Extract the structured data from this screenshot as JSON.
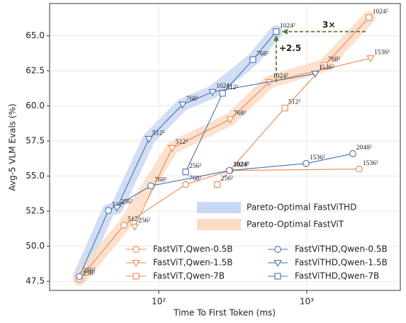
{
  "chart_data": {
    "type": "line",
    "xlabel": "Time To First Token (ms)",
    "ylabel": "Avg-5 VLM Evals (%)",
    "xscale": "log",
    "xlim": [
      18.3,
      4290
    ],
    "ylim": [
      46.85,
      67.3
    ],
    "xticks": [
      {
        "value": 100,
        "label": "10²"
      },
      {
        "value": 1000,
        "label": "10³"
      }
    ],
    "yticks": [
      47.5,
      {
        "value": 50,
        "label": "50.0"
      },
      52.5,
      {
        "value": 55,
        "label": "55.0"
      },
      57.5,
      {
        "value": 60,
        "label": "60.0"
      },
      62.5,
      {
        "value": 65,
        "label": "65.0"
      }
    ],
    "grid": true,
    "series": [
      {
        "name": "FastViT,Qwen-0.5B",
        "family": "FastViT",
        "marker": "circle",
        "color": "#e8884a",
        "label_color": "#b5452a",
        "x": [
          29.1,
          58.3,
          152,
          304,
          2260
        ],
        "values": [
          47.65,
          51.5,
          54.4,
          55.4,
          55.5
        ],
        "point_labels": [
          "256²",
          "512²",
          "768²",
          "1024²",
          "1536²"
        ]
      },
      {
        "name": "FastViT,Qwen-1.5B",
        "family": "FastViT",
        "marker": "triangle",
        "color": "#e8884a",
        "label_color": "#b5452a",
        "x": [
          68.7,
          123,
          304,
          557,
          2700
        ],
        "values": [
          51.4,
          57.0,
          59.05,
          61.7,
          63.4
        ],
        "point_labels": [
          "256²",
          "512²",
          "768²",
          "1024²",
          "1536²"
        ]
      },
      {
        "name": "FastViT,Qwen-7B",
        "family": "FastViT",
        "marker": "square",
        "color": "#e8884a",
        "label_color": "#b5452a",
        "x": [
          249,
          711,
          1318,
          2636
        ],
        "values": [
          54.4,
          59.85,
          62.9,
          66.3
        ],
        "point_labels": [
          "256²",
          "512²",
          "768²",
          "1024²"
        ]
      },
      {
        "name": "FastViTHD,Qwen-0.5B",
        "family": "FastViTHD",
        "marker": "circle",
        "color": "#4a6fb0",
        "label_color": "#22336b",
        "x": [
          29.1,
          45.7,
          88.6,
          300,
          989,
          2047
        ],
        "values": [
          47.85,
          52.55,
          54.3,
          55.4,
          55.9,
          56.6
        ],
        "point_labels": [
          "256²",
          "512²",
          "768²",
          "1024²",
          "1536²",
          "2048²"
        ]
      },
      {
        "name": "FastViTHD,Qwen-1.5B",
        "family": "FastViTHD",
        "marker": "triangle",
        "color": "#4a6fb0",
        "label_color": "#22336b",
        "x": [
          52.2,
          85.7,
          145,
          231,
          1141
        ],
        "values": [
          52.75,
          57.65,
          60.1,
          61.0,
          62.3
        ],
        "point_labels": [
          "256²",
          "512²",
          "768²",
          "1024²",
          "1536²"
        ]
      },
      {
        "name": "FastViTHD,Qwen-7B",
        "family": "FastViTHD",
        "marker": "square",
        "color": "#4a6fb0",
        "label_color": "#22336b",
        "x": [
          152,
          270,
          433,
          622
        ],
        "values": [
          55.3,
          60.9,
          63.3,
          65.3
        ],
        "point_labels": [
          "256²",
          "512²",
          "768²",
          "1024²"
        ]
      }
    ],
    "pareto": [
      {
        "name": "Pareto-Optimal FastViTHD",
        "family": "FastViTHD",
        "color": "#c9d8f2"
      },
      {
        "name": "Pareto-Optimal FastViT",
        "family": "FastViT",
        "color": "#fbdcc6"
      }
    ],
    "annotations": [
      "3×",
      "+2.5"
    ]
  }
}
